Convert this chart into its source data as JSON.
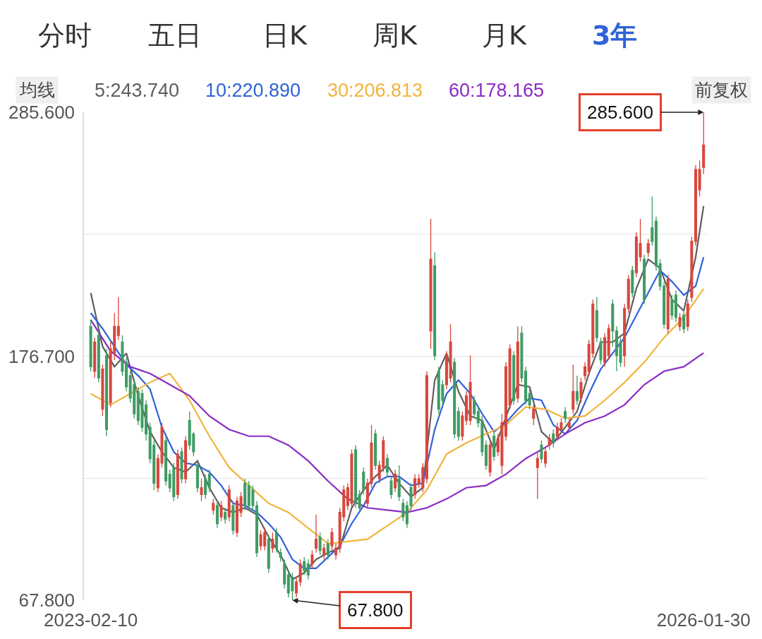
{
  "chart_data": {
    "type": "candlestick",
    "x": [
      "2023-02-10",
      "2023-02-17",
      "2023-02-24",
      "2023-03-03",
      "2023-03-10",
      "2023-03-17",
      "2023-03-24",
      "2023-03-31",
      "2023-04-07",
      "2023-04-14",
      "2023-04-21",
      "2023-04-28",
      "2023-05-05",
      "2023-05-12",
      "2023-05-19",
      "2023-05-26",
      "2023-06-02",
      "2023-06-09",
      "2023-06-16",
      "2023-06-23",
      "2023-06-30",
      "2023-07-07",
      "2023-07-14",
      "2023-07-21",
      "2023-07-28",
      "2023-08-04",
      "2023-08-11",
      "2023-08-18",
      "2023-08-25",
      "2023-09-01",
      "2023-09-08",
      "2023-09-15",
      "2023-09-22",
      "2023-09-29",
      "2023-10-06",
      "2023-10-13",
      "2023-10-20",
      "2023-10-27",
      "2023-11-03",
      "2023-11-10",
      "2023-11-17",
      "2023-11-24",
      "2023-12-01",
      "2023-12-08",
      "2023-12-15",
      "2023-12-22",
      "2023-12-29",
      "2024-01-05",
      "2024-01-12",
      "2024-01-19",
      "2024-01-26",
      "2024-02-02",
      "2024-02-09",
      "2024-02-16",
      "2024-02-23",
      "2024-03-01",
      "2024-03-08",
      "2024-03-15",
      "2024-03-22",
      "2024-03-29",
      "2024-04-05",
      "2024-04-12",
      "2024-04-19",
      "2024-04-26",
      "2024-05-03",
      "2024-05-10",
      "2024-05-17",
      "2024-05-24",
      "2024-05-31",
      "2024-06-07",
      "2024-06-14",
      "2024-06-21",
      "2024-06-28",
      "2024-07-05",
      "2024-07-12",
      "2024-07-19",
      "2024-07-26",
      "2024-08-02",
      "2024-08-09",
      "2024-08-16",
      "2024-08-23",
      "2024-08-30",
      "2024-09-06",
      "2024-09-13",
      "2024-09-20",
      "2024-09-27",
      "2024-10-04",
      "2024-10-11",
      "2024-10-18",
      "2024-10-25",
      "2024-11-01",
      "2024-11-08",
      "2024-11-15",
      "2024-11-22",
      "2024-11-29",
      "2024-12-06",
      "2024-12-13",
      "2024-12-20",
      "2024-12-27",
      "2025-01-03",
      "2025-01-10",
      "2025-01-17",
      "2025-01-24",
      "2025-01-31",
      "2025-02-07",
      "2025-02-14",
      "2025-02-21",
      "2025-02-28",
      "2025-03-07",
      "2025-03-14",
      "2025-03-21",
      "2025-03-28",
      "2025-04-04",
      "2025-04-11",
      "2025-04-18",
      "2025-04-25",
      "2025-05-02",
      "2025-05-09",
      "2025-05-16",
      "2025-05-23",
      "2025-05-30",
      "2025-06-06",
      "2025-06-13",
      "2025-06-20",
      "2025-06-27",
      "2025-07-04",
      "2025-07-11",
      "2025-07-18",
      "2025-07-25",
      "2025-08-01",
      "2025-08-08",
      "2025-08-15",
      "2025-08-22",
      "2025-08-29",
      "2025-09-05",
      "2025-09-12",
      "2025-09-19",
      "2025-09-26",
      "2025-10-03",
      "2025-10-10",
      "2025-10-17",
      "2025-10-24",
      "2025-10-31",
      "2025-11-07",
      "2025-11-14",
      "2025-11-21",
      "2025-11-28",
      "2025-12-05",
      "2025-12-12",
      "2025-12-19",
      "2025-12-26",
      "2026-01-02",
      "2026-01-09",
      "2026-01-16",
      "2026-01-23",
      "2026-01-30"
    ],
    "ohlc": [
      [
        190,
        193,
        170,
        172
      ],
      [
        170,
        185,
        167,
        183
      ],
      [
        186,
        188,
        165,
        167
      ],
      [
        153,
        173,
        150,
        171
      ],
      [
        177,
        180,
        141,
        144
      ],
      [
        156,
        183,
        154,
        180
      ],
      [
        178,
        196,
        175,
        190
      ],
      [
        186,
        203,
        184,
        190
      ],
      [
        183,
        186,
        168,
        170
      ],
      [
        174,
        176,
        161,
        163
      ],
      [
        168,
        170,
        156,
        158
      ],
      [
        164,
        166,
        149,
        151
      ],
      [
        161,
        163,
        146,
        148
      ],
      [
        160,
        162,
        143,
        145
      ],
      [
        155,
        157,
        139,
        142
      ],
      [
        145,
        147,
        129,
        131
      ],
      [
        137,
        139,
        117,
        120
      ],
      [
        118,
        133,
        116,
        131
      ],
      [
        129,
        147,
        127,
        145
      ],
      [
        139,
        141,
        119,
        121
      ],
      [
        124,
        126,
        116,
        118
      ],
      [
        127,
        129,
        112,
        114
      ],
      [
        115,
        135,
        113,
        133
      ],
      [
        134,
        136,
        120,
        122
      ],
      [
        122,
        141,
        120,
        139
      ],
      [
        148,
        152,
        135,
        137
      ],
      [
        142,
        143,
        132,
        134
      ],
      [
        128,
        130,
        116,
        118
      ],
      [
        115,
        122,
        112,
        118
      ],
      [
        122,
        124,
        113,
        115
      ],
      [
        124,
        126,
        116,
        118
      ],
      [
        108,
        113,
        106,
        111
      ],
      [
        110,
        112,
        100,
        102
      ],
      [
        105,
        112,
        103,
        110
      ],
      [
        107,
        109,
        102,
        104
      ],
      [
        105,
        119,
        103,
        117
      ],
      [
        110,
        112,
        97,
        99
      ],
      [
        98,
        114,
        96,
        112
      ],
      [
        107,
        116,
        105,
        114
      ],
      [
        120,
        122,
        108,
        110
      ],
      [
        119,
        121,
        108,
        110
      ],
      [
        117,
        119,
        108,
        110
      ],
      [
        110,
        112,
        87,
        89
      ],
      [
        92,
        99,
        90,
        97
      ],
      [
        92,
        100,
        90,
        98
      ],
      [
        95,
        97,
        80,
        82
      ],
      [
        91,
        98,
        89,
        95
      ],
      [
        98,
        100,
        89,
        91
      ],
      [
        89,
        91,
        85,
        87
      ],
      [
        84,
        86,
        73,
        75
      ],
      [
        79,
        81,
        69,
        71
      ],
      [
        78,
        80,
        67.8,
        72
      ],
      [
        71,
        78,
        69,
        76
      ],
      [
        76,
        86,
        74,
        84
      ],
      [
        85,
        87,
        79,
        81
      ],
      [
        84,
        86,
        77,
        79
      ],
      [
        84,
        90,
        82,
        88
      ],
      [
        91,
        106,
        89,
        95
      ],
      [
        96,
        98,
        88,
        90
      ],
      [
        88,
        93,
        86,
        91
      ],
      [
        93,
        95,
        86,
        88
      ],
      [
        92,
        100,
        90,
        98
      ],
      [
        88,
        93,
        86,
        91
      ],
      [
        91,
        109,
        89,
        107
      ],
      [
        105,
        119,
        103,
        117
      ],
      [
        110,
        120,
        108,
        118
      ],
      [
        111,
        135,
        109,
        133
      ],
      [
        135,
        137,
        109,
        111
      ],
      [
        115,
        117,
        107,
        109
      ],
      [
        125,
        127,
        115,
        117
      ],
      [
        111,
        122,
        109,
        120
      ],
      [
        120,
        146,
        118,
        138
      ],
      [
        142,
        144,
        126,
        128
      ],
      [
        122,
        130,
        120,
        128
      ],
      [
        127,
        141,
        125,
        139
      ],
      [
        131,
        133,
        123,
        125
      ],
      [
        121,
        123,
        113,
        115
      ],
      [
        118,
        126,
        116,
        124
      ],
      [
        122,
        128,
        112,
        114
      ],
      [
        111,
        113,
        103,
        105
      ],
      [
        110,
        112,
        100,
        102
      ],
      [
        118,
        120,
        108,
        110
      ],
      [
        115,
        124,
        113,
        122
      ],
      [
        120,
        124,
        118,
        122
      ],
      [
        118,
        129,
        116,
        127
      ],
      [
        122,
        170,
        120,
        168
      ],
      [
        188,
        238,
        180,
        220
      ],
      [
        217,
        223,
        175,
        177
      ],
      [
        170,
        172,
        151,
        153
      ],
      [
        164,
        166,
        155,
        157
      ],
      [
        164,
        179,
        162,
        177
      ],
      [
        167,
        191,
        165,
        183
      ],
      [
        174,
        176,
        140,
        142
      ],
      [
        152,
        154,
        139,
        141
      ],
      [
        141,
        152,
        139,
        150
      ],
      [
        148,
        161,
        146,
        159
      ],
      [
        148,
        177,
        146,
        165
      ],
      [
        157,
        159,
        149,
        151
      ],
      [
        152,
        154,
        145,
        147
      ],
      [
        148,
        150,
        132,
        134
      ],
      [
        137,
        139,
        126,
        128
      ],
      [
        125,
        139,
        123,
        137
      ],
      [
        141,
        143,
        130,
        132
      ],
      [
        134,
        142,
        132,
        140
      ],
      [
        128,
        151,
        124,
        147
      ],
      [
        141,
        174,
        139,
        172
      ],
      [
        155,
        182,
        153,
        180
      ],
      [
        177,
        179,
        155,
        157
      ],
      [
        158,
        190,
        156,
        183
      ],
      [
        187,
        190,
        165,
        167
      ],
      [
        170,
        172,
        155,
        157
      ],
      [
        160,
        162,
        153,
        155
      ],
      [
        149,
        155,
        146,
        153
      ],
      [
        127,
        134,
        113,
        131
      ],
      [
        137,
        139,
        129,
        131
      ],
      [
        129,
        136,
        127,
        134
      ],
      [
        137,
        142,
        135,
        140
      ],
      [
        142,
        144,
        136,
        138
      ],
      [
        141,
        147,
        139,
        145
      ],
      [
        144,
        149,
        142,
        147
      ],
      [
        152,
        154,
        147,
        149
      ],
      [
        145,
        149,
        143,
        147
      ],
      [
        153,
        173,
        151,
        161
      ],
      [
        161,
        168,
        155,
        157
      ],
      [
        158,
        167,
        156,
        165
      ],
      [
        168,
        174,
        166,
        172
      ],
      [
        170,
        184,
        168,
        182
      ],
      [
        178,
        202,
        176,
        200
      ],
      [
        197,
        203,
        183,
        185
      ],
      [
        183,
        185,
        173,
        175
      ],
      [
        174,
        187,
        172,
        185
      ],
      [
        177,
        191,
        175,
        189
      ],
      [
        200,
        202,
        181,
        188
      ],
      [
        188,
        190,
        170,
        177
      ],
      [
        183,
        185,
        172,
        174
      ],
      [
        177,
        200,
        172,
        198
      ],
      [
        198,
        213,
        196,
        211
      ],
      [
        215,
        217,
        203,
        205
      ],
      [
        214,
        232,
        212,
        230
      ],
      [
        221,
        238,
        219,
        227
      ],
      [
        220,
        222,
        200,
        202
      ],
      [
        223,
        229,
        221,
        227
      ],
      [
        234,
        248,
        226,
        228
      ],
      [
        237,
        239,
        215,
        217
      ],
      [
        218,
        220,
        206,
        208
      ],
      [
        208,
        210,
        189,
        191
      ],
      [
        189,
        213,
        187,
        211
      ],
      [
        202,
        204,
        193,
        195
      ],
      [
        204,
        206,
        192,
        194
      ],
      [
        190,
        196,
        188,
        194
      ],
      [
        195,
        197,
        187,
        189
      ],
      [
        190,
        202,
        188,
        200
      ],
      [
        203,
        230,
        201,
        228
      ],
      [
        228,
        262,
        226,
        260
      ],
      [
        251,
        264,
        248,
        260
      ],
      [
        261,
        285.6,
        258,
        271
      ]
    ],
    "colors": [
      "#3f9c64",
      "#d8473d",
      "#3f9c64",
      "#d8473d",
      "#3f9c64",
      "#d8473d",
      "#d8473d",
      "#d8473d",
      "#3f9c64",
      "#3f9c64",
      "#3f9c64",
      "#3f9c64",
      "#3f9c64",
      "#3f9c64",
      "#3f9c64",
      "#3f9c64",
      "#3f9c64",
      "#d8473d",
      "#d8473d",
      "#3f9c64",
      "#3f9c64",
      "#3f9c64",
      "#d8473d",
      "#3f9c64",
      "#d8473d",
      "#3f9c64",
      "#3f9c64",
      "#3f9c64",
      "#d8473d",
      "#3f9c64",
      "#3f9c64",
      "#d8473d",
      "#3f9c64",
      "#d8473d",
      "#3f9c64",
      "#d8473d",
      "#3f9c64",
      "#d8473d",
      "#d8473d",
      "#3f9c64",
      "#3f9c64",
      "#3f9c64",
      "#3f9c64",
      "#d8473d",
      "#d8473d",
      "#3f9c64",
      "#d8473d",
      "#3f9c64",
      "#3f9c64",
      "#3f9c64",
      "#3f9c64",
      "#3f9c64",
      "#d8473d",
      "#d8473d",
      "#3f9c64",
      "#3f9c64",
      "#d8473d",
      "#d8473d",
      "#3f9c64",
      "#d8473d",
      "#3f9c64",
      "#d8473d",
      "#d8473d",
      "#d8473d",
      "#d8473d",
      "#d8473d",
      "#d8473d",
      "#3f9c64",
      "#3f9c64",
      "#3f9c64",
      "#d8473d",
      "#d8473d",
      "#3f9c64",
      "#d8473d",
      "#d8473d",
      "#3f9c64",
      "#3f9c64",
      "#d8473d",
      "#3f9c64",
      "#3f9c64",
      "#3f9c64",
      "#3f9c64",
      "#d8473d",
      "#d8473d",
      "#d8473d",
      "#d8473d",
      "#d8473d",
      "#3f9c64",
      "#3f9c64",
      "#3f9c64",
      "#d8473d",
      "#d8473d",
      "#3f9c64",
      "#3f9c64",
      "#d8473d",
      "#d8473d",
      "#d8473d",
      "#3f9c64",
      "#3f9c64",
      "#3f9c64",
      "#3f9c64",
      "#d8473d",
      "#3f9c64",
      "#d8473d",
      "#d8473d",
      "#d8473d",
      "#d8473d",
      "#3f9c64",
      "#d8473d",
      "#3f9c64",
      "#3f9c64",
      "#3f9c64",
      "#d8473d",
      "#d8473d",
      "#3f9c64",
      "#d8473d",
      "#d8473d",
      "#3f9c64",
      "#d8473d",
      "#d8473d",
      "#3f9c64",
      "#d8473d",
      "#d8473d",
      "#3f9c64",
      "#d8473d",
      "#d8473d",
      "#d8473d",
      "#d8473d",
      "#3f9c64",
      "#3f9c64",
      "#d8473d",
      "#d8473d",
      "#3f9c64",
      "#3f9c64",
      "#3f9c64",
      "#d8473d",
      "#d8473d",
      "#3f9c64",
      "#d8473d",
      "#d8473d",
      "#3f9c64",
      "#d8473d",
      "#3f9c64",
      "#3f9c64",
      "#3f9c64",
      "#3f9c64",
      "#d8473d",
      "#3f9c64",
      "#3f9c64",
      "#d8473d",
      "#3f9c64",
      "#d8473d",
      "#d8473d",
      "#d8473d",
      "#d8473d",
      "#d8473d"
    ],
    "series": [
      {
        "type": "line",
        "name": "5:243.740",
        "color": "#5e5e5e",
        "x": [
          "2023-02-10",
          "2023-03-03",
          "2023-03-24",
          "2023-04-14",
          "2023-05-05",
          "2023-05-26",
          "2023-06-16",
          "2023-07-07",
          "2023-07-28",
          "2023-08-18",
          "2023-09-08",
          "2023-09-29",
          "2023-10-20",
          "2023-11-10",
          "2023-12-01",
          "2023-12-22",
          "2024-01-12",
          "2024-02-02",
          "2024-02-23",
          "2024-03-15",
          "2024-04-05",
          "2024-04-26",
          "2024-05-17",
          "2024-06-07",
          "2024-06-28",
          "2024-07-19",
          "2024-08-09",
          "2024-08-30",
          "2024-09-20",
          "2024-10-11",
          "2024-11-01",
          "2024-11-22",
          "2024-12-13",
          "2025-01-03",
          "2025-01-24",
          "2025-03-07",
          "2025-03-28",
          "2025-04-18",
          "2025-05-09",
          "2025-05-30",
          "2025-06-20",
          "2025-07-11",
          "2025-08-01",
          "2025-08-22",
          "2025-09-12",
          "2025-10-03",
          "2025-10-24",
          "2025-11-14",
          "2025-12-05",
          "2025-12-26",
          "2026-01-16",
          "2026-01-30"
        ],
        "values": [
          205,
          181,
          172,
          178,
          159,
          143,
          134,
          127,
          125,
          130,
          118,
          109,
          107,
          109,
          106,
          96,
          88,
          77,
          80,
          86,
          89,
          91,
          109,
          117,
          123,
          128,
          120,
          114,
          118,
          166,
          178,
          161,
          150,
          148,
          135,
          164,
          163,
          143,
          138,
          145,
          152,
          169,
          183,
          183,
          187,
          207,
          220,
          216,
          202,
          197,
          221,
          243.74
        ]
      },
      {
        "type": "line",
        "name": "10:220.890",
        "color": "#2f62d8",
        "x": [
          "2023-02-10",
          "2023-03-03",
          "2023-03-24",
          "2023-04-14",
          "2023-05-05",
          "2023-05-26",
          "2023-06-16",
          "2023-07-07",
          "2023-07-28",
          "2023-08-18",
          "2023-09-08",
          "2023-09-29",
          "2023-10-20",
          "2023-11-10",
          "2023-12-01",
          "2023-12-22",
          "2024-01-12",
          "2024-02-02",
          "2024-02-23",
          "2024-03-15",
          "2024-04-05",
          "2024-04-26",
          "2024-05-17",
          "2024-06-07",
          "2024-06-28",
          "2024-07-19",
          "2024-08-09",
          "2024-08-30",
          "2024-09-20",
          "2024-10-11",
          "2024-11-01",
          "2024-11-22",
          "2024-12-13",
          "2025-01-03",
          "2025-01-24",
          "2025-02-14",
          "2025-03-07",
          "2025-03-28",
          "2025-04-18",
          "2025-05-09",
          "2025-05-30",
          "2025-06-20",
          "2025-07-11",
          "2025-08-01",
          "2025-08-22",
          "2025-09-12",
          "2025-10-03",
          "2025-10-24",
          "2025-11-14",
          "2025-12-05",
          "2025-12-26",
          "2026-01-16",
          "2026-01-30"
        ],
        "values": [
          196,
          189,
          181,
          173,
          168,
          162,
          145,
          134,
          129,
          128,
          125,
          119,
          111,
          110,
          107,
          102,
          96,
          86,
          82,
          82,
          87,
          92,
          102,
          110,
          120,
          123,
          123,
          119,
          120,
          144,
          160,
          166,
          160,
          151,
          143,
          147,
          153,
          158,
          157,
          146,
          142,
          148,
          160,
          171,
          178,
          185,
          195,
          205,
          215,
          210,
          204,
          208,
          220.89
        ]
      },
      {
        "type": "line",
        "name": "30:206.813",
        "color": "#f0b43c",
        "x": [
          "2023-02-10",
          "2023-03-17",
          "2023-04-21",
          "2023-05-26",
          "2023-06-30",
          "2023-08-04",
          "2023-09-08",
          "2023-10-13",
          "2023-11-17",
          "2023-12-22",
          "2024-01-26",
          "2024-03-01",
          "2024-04-05",
          "2024-05-10",
          "2024-06-14",
          "2024-07-19",
          "2024-08-23",
          "2024-09-27",
          "2024-11-01",
          "2024-12-06",
          "2025-01-10",
          "2025-02-14",
          "2025-03-21",
          "2025-04-25",
          "2025-05-30",
          "2025-07-04",
          "2025-08-08",
          "2025-09-12",
          "2025-10-17",
          "2025-11-21",
          "2025-12-26",
          "2026-01-30"
        ],
        "values": [
          160,
          155,
          160,
          165,
          169,
          157,
          141,
          127,
          119,
          111,
          107,
          100,
          93,
          94,
          95,
          101,
          107,
          117,
          133,
          138,
          142,
          146,
          154,
          153,
          149,
          150,
          157,
          165,
          174,
          185,
          194,
          206.813
        ]
      },
      {
        "type": "line",
        "name": "60:178.165",
        "color": "#8a2cc6",
        "x": [
          "2023-02-10",
          "2023-03-17",
          "2023-04-21",
          "2023-05-26",
          "2023-06-30",
          "2023-08-04",
          "2023-09-08",
          "2023-10-13",
          "2023-11-17",
          "2023-12-22",
          "2024-01-26",
          "2024-03-01",
          "2024-04-05",
          "2024-05-10",
          "2024-06-14",
          "2024-07-19",
          "2024-08-23",
          "2024-09-27",
          "2024-11-01",
          "2024-12-06",
          "2025-01-10",
          "2025-02-14",
          "2025-03-21",
          "2025-04-25",
          "2025-05-30",
          "2025-07-04",
          "2025-08-08",
          "2025-09-12",
          "2025-10-17",
          "2025-11-21",
          "2025-12-26",
          "2026-01-30"
        ],
        "values": [
          193,
          179,
          172,
          169,
          164,
          159,
          150,
          144,
          141,
          141,
          137,
          130,
          121,
          113,
          109,
          108,
          107,
          109,
          113,
          118,
          119,
          124,
          131,
          136,
          142,
          147,
          150,
          155,
          164,
          170,
          172,
          178.165
        ]
      }
    ],
    "xlim": [
      "2023-01-29",
      "2026-02-05"
    ],
    "xticks": [
      "2023-02-10",
      "2026-01-30"
    ],
    "ylim": [
      67.8,
      285.6
    ],
    "yticks": [
      {
        "value": 285.6,
        "label": "285.600"
      },
      {
        "value": 231.15,
        "label": null
      },
      {
        "value": 176.7,
        "label": "176.700"
      },
      {
        "value": 122.25,
        "label": null
      },
      {
        "value": 67.8,
        "label": "67.800"
      }
    ],
    "grid": "y",
    "legend": "top left",
    "legend_title": "均线",
    "annotations": [
      "分时",
      "五日",
      "日K",
      "周K",
      "月K",
      "3年",
      "前复权",
      {
        "text": "285.600",
        "x": "2026-01-30",
        "y": 285.6
      },
      {
        "text": "67.800",
        "x": "2024-02-02",
        "y": 67.8
      }
    ]
  }
}
